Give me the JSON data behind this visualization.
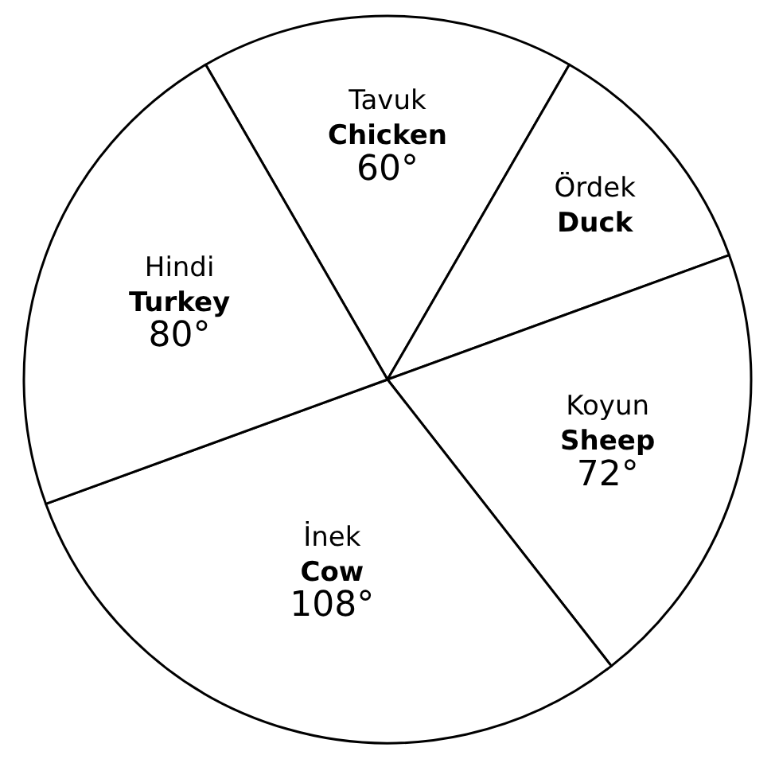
{
  "chart_data": {
    "type": "pie",
    "categories": [
      "Tavuk\nChicken",
      "Ördek\nDuck",
      "Koyun\nSheep",
      "İnek\nCow",
      "Hindi\nTurkey"
    ],
    "values": [
      60,
      40,
      72,
      108,
      80
    ],
    "value_labels": [
      "60°",
      null,
      "72°",
      "108°",
      "80°"
    ],
    "colors": [
      "#ffffff",
      "#ffffff",
      "#ffffff",
      "#ffffff",
      "#ffffff"
    ],
    "legend": false
  }
}
